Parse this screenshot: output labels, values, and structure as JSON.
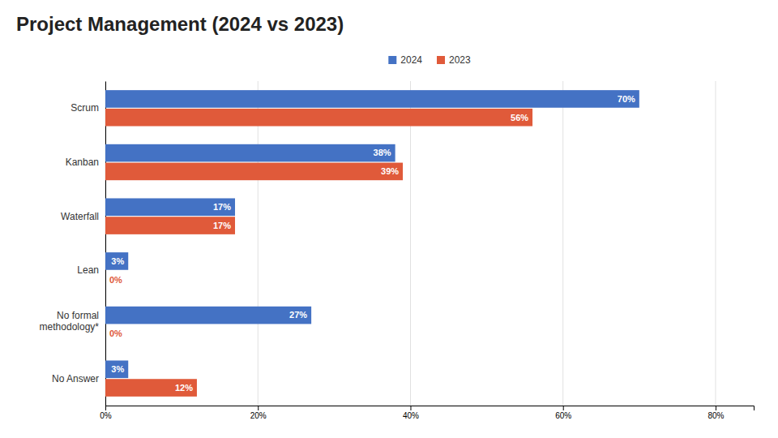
{
  "chart_data": {
    "type": "bar",
    "orientation": "horizontal",
    "title": "Project Management (2024 vs 2023)",
    "categories": [
      "Scrum",
      "Kanban",
      "Waterfall",
      "Lean",
      "No formal\nmethodology*",
      "No Answer"
    ],
    "series": [
      {
        "name": "2024",
        "color": "#4472C4",
        "values": [
          70,
          38,
          17,
          3,
          27,
          3
        ],
        "value_labels": [
          "70%",
          "38%",
          "17%",
          "3%",
          "27%",
          "3%"
        ]
      },
      {
        "name": "2023",
        "color": "#E05A3A",
        "values": [
          56,
          39,
          17,
          0,
          0,
          12
        ],
        "value_labels": [
          "56%",
          "39%",
          "17%",
          "0%",
          "0%",
          "12%"
        ]
      }
    ],
    "xlim": [
      0,
      85
    ],
    "xticks": [
      {
        "value": 0,
        "label": "0%"
      },
      {
        "value": 20,
        "label": "20%"
      },
      {
        "value": 40,
        "label": "40%"
      },
      {
        "value": 60,
        "label": "60%"
      },
      {
        "value": 80,
        "label": "80%"
      }
    ],
    "grid": true,
    "legend": "top",
    "data_labels": true
  }
}
